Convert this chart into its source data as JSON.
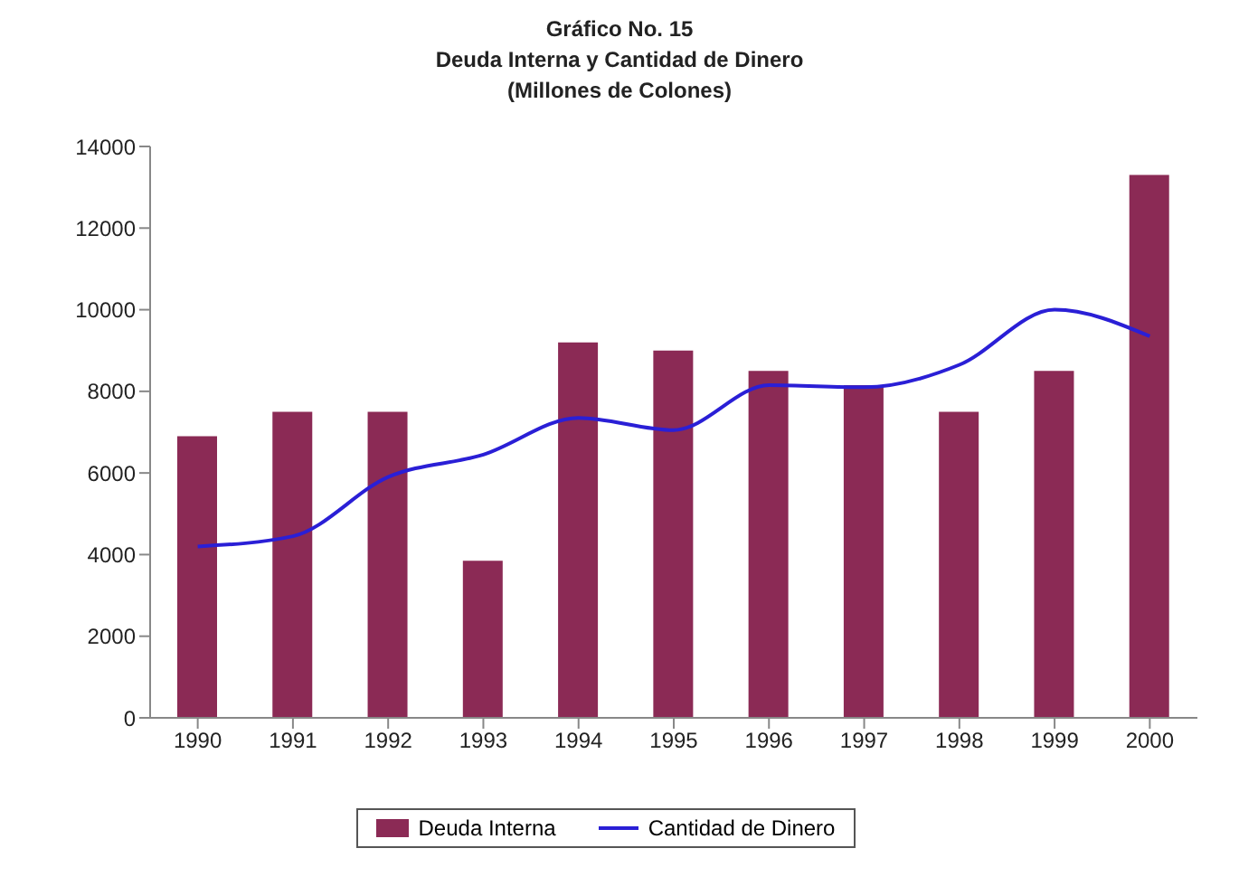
{
  "chart_data": {
    "type": "bar",
    "title": "Gráfico No. 15",
    "subtitle": "Deuda Interna y Cantidad de Dinero\n(Millones de Colones)",
    "categories": [
      "1990",
      "1991",
      "1992",
      "1993",
      "1994",
      "1995",
      "1996",
      "1997",
      "1998",
      "1999",
      "2000"
    ],
    "series": [
      {
        "name": "Deuda Interna",
        "color": "#8b2a55",
        "values": [
          6900,
          7500,
          7500,
          3850,
          9200,
          9000,
          8500,
          8150,
          7500,
          8500,
          13300
        ]
      },
      {
        "name": "Cantidad de Dinero",
        "type": "line",
        "color": "#2a1fd6",
        "values": [
          4200,
          4450,
          5900,
          6450,
          7350,
          7050,
          8150,
          8100,
          8650,
          10000,
          9350
        ]
      }
    ],
    "ylim": [
      0,
      14000
    ],
    "yticks": [
      0,
      2000,
      4000,
      6000,
      8000,
      10000,
      12000,
      14000
    ],
    "grid": false,
    "legend": "bottom",
    "marker": "none",
    "line_style": "solid"
  }
}
